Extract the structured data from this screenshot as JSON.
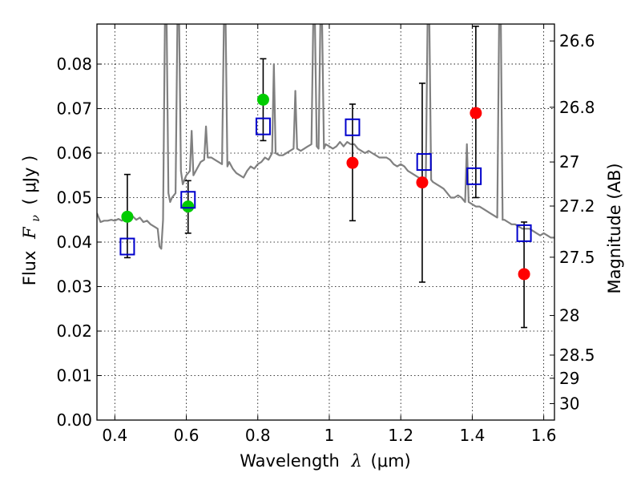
{
  "chart_data": {
    "type": "scatter",
    "xlabel_prefix": "Wavelength",
    "xlabel_symbol": "λ",
    "xlabel_unit": "(μm)",
    "ylabel_prefix": "Flux",
    "ylabel_symbol": "F",
    "ylabel_subscript": "ν",
    "ylabel_unit": "( μJy )",
    "y2label": "Magnitude (AB)",
    "xlim": [
      0.35,
      1.63
    ],
    "ylim": [
      0.0,
      0.089
    ],
    "grid": true,
    "x_ticks": [
      {
        "value": 0.4,
        "label": "0.4"
      },
      {
        "value": 0.6,
        "label": "0.6"
      },
      {
        "value": 0.8,
        "label": "0.8"
      },
      {
        "value": 1.0,
        "label": "1"
      },
      {
        "value": 1.2,
        "label": "1.2"
      },
      {
        "value": 1.4,
        "label": "1.4"
      },
      {
        "value": 1.6,
        "label": "1.6"
      }
    ],
    "y_ticks": [
      {
        "value": 0.0,
        "label": "0.00"
      },
      {
        "value": 0.01,
        "label": "0.01"
      },
      {
        "value": 0.02,
        "label": "0.02"
      },
      {
        "value": 0.03,
        "label": "0.03"
      },
      {
        "value": 0.04,
        "label": "0.04"
      },
      {
        "value": 0.05,
        "label": "0.05"
      },
      {
        "value": 0.06,
        "label": "0.06"
      },
      {
        "value": 0.07,
        "label": "0.07"
      },
      {
        "value": 0.08,
        "label": "0.08"
      }
    ],
    "y2_ticks": [
      {
        "flux": 0.0852,
        "label": "26.6"
      },
      {
        "flux": 0.0703,
        "label": "26.8"
      },
      {
        "flux": 0.058,
        "label": "27"
      },
      {
        "flux": 0.0481,
        "label": "27.2"
      },
      {
        "flux": 0.0366,
        "label": "27.5"
      },
      {
        "flux": 0.0235,
        "label": "28"
      },
      {
        "flux": 0.0146,
        "label": "28.5"
      },
      {
        "flux": 0.0094,
        "label": "29"
      },
      {
        "flux": 0.0037,
        "label": "30"
      }
    ],
    "series": [
      {
        "name": "model SED",
        "kind": "line",
        "color": "#808080",
        "points": [
          [
            0.35,
            0.0465
          ],
          [
            0.36,
            0.0445
          ],
          [
            0.37,
            0.0448
          ],
          [
            0.38,
            0.0448
          ],
          [
            0.39,
            0.045
          ],
          [
            0.4,
            0.0448
          ],
          [
            0.41,
            0.0452
          ],
          [
            0.42,
            0.0448
          ],
          [
            0.43,
            0.0455
          ],
          [
            0.44,
            0.045
          ],
          [
            0.45,
            0.0458
          ],
          [
            0.46,
            0.045
          ],
          [
            0.47,
            0.0455
          ],
          [
            0.48,
            0.0445
          ],
          [
            0.49,
            0.0448
          ],
          [
            0.5,
            0.044
          ],
          [
            0.51,
            0.0435
          ],
          [
            0.52,
            0.043
          ],
          [
            0.525,
            0.039
          ],
          [
            0.53,
            0.0385
          ],
          [
            0.535,
            0.045
          ],
          [
            0.54,
            0.089
          ],
          [
            0.545,
            0.089
          ],
          [
            0.55,
            0.051
          ],
          [
            0.555,
            0.049
          ],
          [
            0.56,
            0.05
          ],
          [
            0.57,
            0.051
          ],
          [
            0.575,
            0.089
          ],
          [
            0.58,
            0.089
          ],
          [
            0.585,
            0.056
          ],
          [
            0.59,
            0.053
          ],
          [
            0.6,
            0.055
          ],
          [
            0.61,
            0.056
          ],
          [
            0.615,
            0.065
          ],
          [
            0.62,
            0.055
          ],
          [
            0.63,
            0.0565
          ],
          [
            0.64,
            0.058
          ],
          [
            0.65,
            0.0585
          ],
          [
            0.655,
            0.066
          ],
          [
            0.66,
            0.059
          ],
          [
            0.67,
            0.059
          ],
          [
            0.68,
            0.0585
          ],
          [
            0.69,
            0.058
          ],
          [
            0.7,
            0.0575
          ],
          [
            0.705,
            0.089
          ],
          [
            0.71,
            0.089
          ],
          [
            0.715,
            0.057
          ],
          [
            0.72,
            0.058
          ],
          [
            0.73,
            0.0565
          ],
          [
            0.74,
            0.0555
          ],
          [
            0.75,
            0.055
          ],
          [
            0.76,
            0.0545
          ],
          [
            0.77,
            0.056
          ],
          [
            0.78,
            0.057
          ],
          [
            0.79,
            0.0565
          ],
          [
            0.8,
            0.0575
          ],
          [
            0.81,
            0.058
          ],
          [
            0.82,
            0.059
          ],
          [
            0.83,
            0.0585
          ],
          [
            0.84,
            0.06
          ],
          [
            0.845,
            0.08
          ],
          [
            0.85,
            0.06
          ],
          [
            0.86,
            0.0595
          ],
          [
            0.87,
            0.0595
          ],
          [
            0.88,
            0.06
          ],
          [
            0.89,
            0.0605
          ],
          [
            0.9,
            0.061
          ],
          [
            0.905,
            0.074
          ],
          [
            0.91,
            0.061
          ],
          [
            0.92,
            0.0605
          ],
          [
            0.93,
            0.061
          ],
          [
            0.94,
            0.0615
          ],
          [
            0.95,
            0.062
          ],
          [
            0.955,
            0.089
          ],
          [
            0.96,
            0.089
          ],
          [
            0.965,
            0.0615
          ],
          [
            0.97,
            0.061
          ],
          [
            0.975,
            0.089
          ],
          [
            0.98,
            0.089
          ],
          [
            0.985,
            0.061
          ],
          [
            0.99,
            0.062
          ],
          [
            1.0,
            0.0615
          ],
          [
            1.01,
            0.061
          ],
          [
            1.02,
            0.0615
          ],
          [
            1.03,
            0.0625
          ],
          [
            1.04,
            0.0615
          ],
          [
            1.05,
            0.0625
          ],
          [
            1.06,
            0.062
          ],
          [
            1.07,
            0.062
          ],
          [
            1.08,
            0.061
          ],
          [
            1.09,
            0.0605
          ],
          [
            1.1,
            0.06
          ],
          [
            1.11,
            0.0605
          ],
          [
            1.12,
            0.06
          ],
          [
            1.13,
            0.0595
          ],
          [
            1.14,
            0.059
          ],
          [
            1.15,
            0.059
          ],
          [
            1.16,
            0.059
          ],
          [
            1.17,
            0.0585
          ],
          [
            1.18,
            0.0575
          ],
          [
            1.19,
            0.057
          ],
          [
            1.2,
            0.0575
          ],
          [
            1.21,
            0.057
          ],
          [
            1.22,
            0.056
          ],
          [
            1.23,
            0.0555
          ],
          [
            1.24,
            0.055
          ],
          [
            1.25,
            0.0545
          ],
          [
            1.26,
            0.054
          ],
          [
            1.27,
            0.054
          ],
          [
            1.275,
            0.089
          ],
          [
            1.28,
            0.089
          ],
          [
            1.285,
            0.054
          ],
          [
            1.29,
            0.0535
          ],
          [
            1.3,
            0.053
          ],
          [
            1.31,
            0.0525
          ],
          [
            1.32,
            0.052
          ],
          [
            1.33,
            0.051
          ],
          [
            1.34,
            0.05
          ],
          [
            1.35,
            0.05
          ],
          [
            1.36,
            0.0505
          ],
          [
            1.37,
            0.05
          ],
          [
            1.38,
            0.049
          ],
          [
            1.385,
            0.062
          ],
          [
            1.39,
            0.049
          ],
          [
            1.4,
            0.0485
          ],
          [
            1.41,
            0.048
          ],
          [
            1.42,
            0.048
          ],
          [
            1.43,
            0.0475
          ],
          [
            1.44,
            0.047
          ],
          [
            1.45,
            0.0465
          ],
          [
            1.46,
            0.046
          ],
          [
            1.47,
            0.0455
          ],
          [
            1.475,
            0.089
          ],
          [
            1.48,
            0.089
          ],
          [
            1.485,
            0.045
          ],
          [
            1.49,
            0.045
          ],
          [
            1.5,
            0.0445
          ],
          [
            1.51,
            0.044
          ],
          [
            1.52,
            0.044
          ],
          [
            1.53,
            0.0435
          ],
          [
            1.54,
            0.043
          ],
          [
            1.55,
            0.043
          ],
          [
            1.56,
            0.043
          ],
          [
            1.57,
            0.0425
          ],
          [
            1.58,
            0.042
          ],
          [
            1.59,
            0.0415
          ],
          [
            1.6,
            0.042
          ],
          [
            1.61,
            0.0415
          ],
          [
            1.62,
            0.041
          ],
          [
            1.63,
            0.041
          ]
        ]
      },
      {
        "name": "green detections",
        "kind": "points",
        "marker": "circle",
        "color": "#00cc00",
        "points": [
          {
            "x": 0.435,
            "y": 0.0457,
            "err_low": 0.0365,
            "err_high": 0.0552
          },
          {
            "x": 0.605,
            "y": 0.048,
            "err_low": 0.042,
            "err_high": 0.0538
          },
          {
            "x": 0.815,
            "y": 0.072,
            "err_low": 0.0628,
            "err_high": 0.0812
          }
        ]
      },
      {
        "name": "red measurements",
        "kind": "points",
        "marker": "circle",
        "color": "#ff0000",
        "points": [
          {
            "x": 1.065,
            "y": 0.0578,
            "err_low": 0.0448,
            "err_high": 0.071
          },
          {
            "x": 1.26,
            "y": 0.0534,
            "err_low": 0.031,
            "err_high": 0.0757
          },
          {
            "x": 1.41,
            "y": 0.069,
            "err_low": 0.05,
            "err_high": 0.0885
          },
          {
            "x": 1.545,
            "y": 0.0328,
            "err_low": 0.0208,
            "err_high": 0.0445
          }
        ]
      },
      {
        "name": "model synthetic photometry",
        "kind": "points",
        "marker": "open-square",
        "color": "#0000cc",
        "points": [
          {
            "x": 0.435,
            "y": 0.039
          },
          {
            "x": 0.605,
            "y": 0.0495
          },
          {
            "x": 0.815,
            "y": 0.066
          },
          {
            "x": 1.065,
            "y": 0.0658
          },
          {
            "x": 1.265,
            "y": 0.058
          },
          {
            "x": 1.405,
            "y": 0.0548
          },
          {
            "x": 1.545,
            "y": 0.042
          }
        ]
      }
    ]
  }
}
